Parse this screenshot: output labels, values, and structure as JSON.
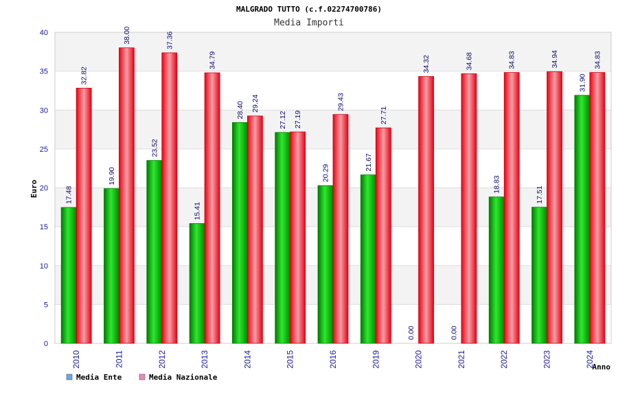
{
  "chart_data": {
    "type": "bar",
    "title": "MALGRADO TUTTO (c.f.02274700786)",
    "subtitle": "Media Importi",
    "xlabel": "Anno",
    "ylabel": "Euro",
    "ylim": [
      0,
      40
    ],
    "ytick_step": 5,
    "categories": [
      "2010",
      "2011",
      "2012",
      "2013",
      "2014",
      "2015",
      "2016",
      "2019",
      "2020",
      "2021",
      "2022",
      "2023",
      "2024"
    ],
    "series": [
      {
        "name": "Media Ente",
        "color": "#00bb00",
        "legend_color": "#66aaee",
        "values": [
          17.48,
          19.9,
          23.52,
          15.41,
          28.4,
          27.12,
          20.29,
          21.67,
          0.0,
          0.0,
          18.83,
          17.51,
          31.9
        ],
        "labels": [
          "17.48",
          "19.90",
          "23.52",
          "15.41",
          "28.40",
          "27.12",
          "20.29",
          "21.67",
          "0.00",
          "0.00",
          "18.83",
          "17.51",
          "31.90"
        ]
      },
      {
        "name": "Media Nazionale",
        "color": "#ee1122",
        "legend_color": "#ee88bb",
        "values": [
          32.82,
          38.0,
          37.36,
          34.79,
          29.24,
          27.19,
          29.43,
          27.71,
          34.32,
          34.68,
          34.83,
          34.94,
          34.83
        ],
        "labels": [
          "32.82",
          "38.00",
          "37.36",
          "34.79",
          "29.24",
          "27.19",
          "29.43",
          "27.71",
          "34.32",
          "34.68",
          "34.83",
          "34.94",
          "34.83"
        ]
      }
    ],
    "grid": true,
    "legend_position": "bottom-left"
  }
}
